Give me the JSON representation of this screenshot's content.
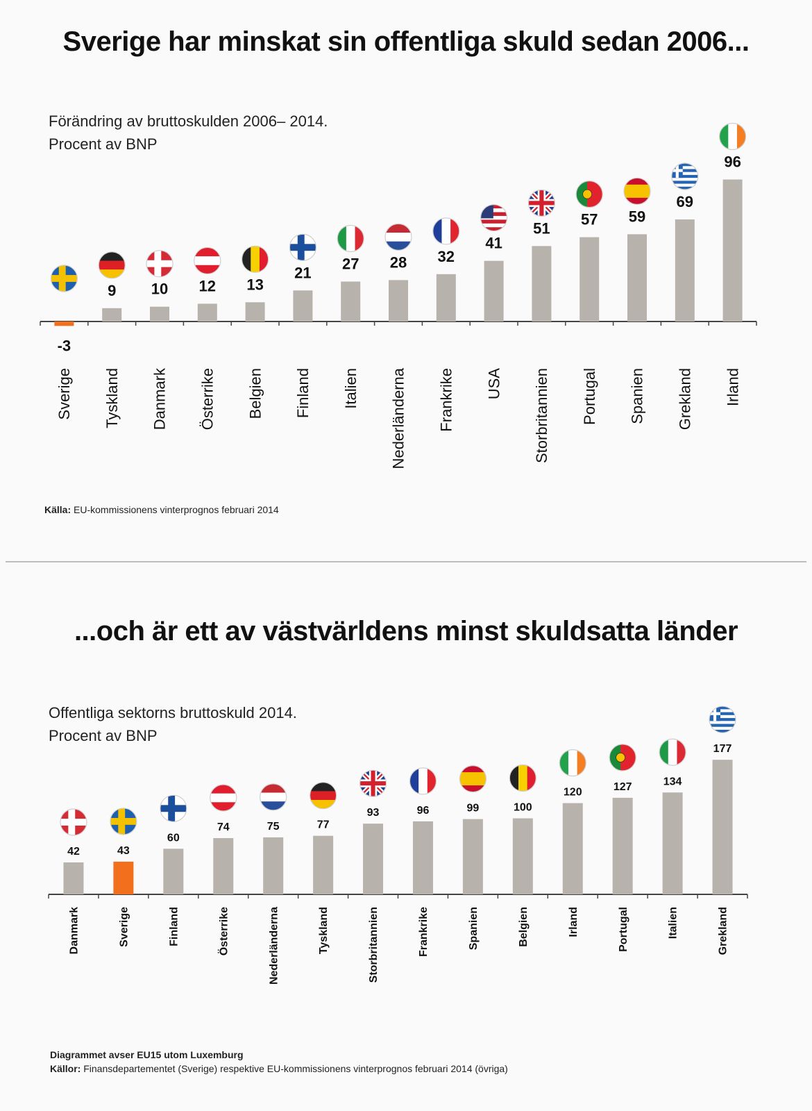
{
  "charts": [
    {
      "title": "Sverige har minskat sin offentliga skuld sedan 2006...",
      "subtitle": [
        "Förändring av bruttoskulden 2006– 2014.",
        "Procent av BNP"
      ],
      "source_label": "Källa:",
      "source_text": "EU-kommissionens vinterprognos februari 2014"
    },
    {
      "title": "...och är ett av västvärldens minst skuldsatta länder",
      "subtitle": [
        "Offentliga sektorns bruttoskuld 2014.",
        "Procent av BNP"
      ],
      "note": "Diagrammet avser EU15 utom Luxemburg",
      "source_label": "Källor:",
      "source_text": "Finansdepartementet (Sverige) respektive EU-kommissionens vinterprognos februari 2014 (övriga)"
    }
  ],
  "colors": {
    "bar": "#b8b2ad",
    "highlight": "#f26f1e",
    "axis": "#444444"
  },
  "chart_data": [
    {
      "type": "bar",
      "title": "Sverige har minskat sin offentliga skuld sedan 2006...",
      "subtitle": "Förändring av bruttoskulden 2006– 2014. Procent av BNP",
      "categories": [
        "Sverige",
        "Tyskland",
        "Danmark",
        "Österrike",
        "Belgien",
        "Finland",
        "Italien",
        "Nederländerna",
        "Frankrike",
        "USA",
        "Storbritannien",
        "Portugal",
        "Spanien",
        "Grekland",
        "Irland"
      ],
      "values": [
        -3,
        9,
        10,
        12,
        13,
        21,
        27,
        28,
        32,
        41,
        51,
        57,
        59,
        69,
        96
      ],
      "flags": [
        "se",
        "de",
        "dk",
        "at",
        "be",
        "fi",
        "it",
        "nl",
        "fr",
        "us",
        "gb",
        "pt",
        "es",
        "gr",
        "ie"
      ],
      "highlight": "Sverige",
      "grid": false
    },
    {
      "type": "bar",
      "title": "...och är ett av västvärldens minst skuldsatta länder",
      "subtitle": "Offentliga sektorns bruttoskuld 2014. Procent av BNP",
      "categories": [
        "Danmark",
        "Sverige",
        "Finland",
        "Österrike",
        "Nederländerna",
        "Tyskland",
        "Storbritannien",
        "Frankrike",
        "Spanien",
        "Belgien",
        "Irland",
        "Portugal",
        "Italien",
        "Grekland"
      ],
      "values": [
        42,
        43,
        60,
        74,
        75,
        77,
        93,
        96,
        99,
        100,
        120,
        127,
        134,
        177
      ],
      "flags": [
        "dk",
        "se",
        "fi",
        "at",
        "nl",
        "de",
        "gb",
        "fr",
        "es",
        "be",
        "ie",
        "pt",
        "it",
        "gr"
      ],
      "highlight": "Sverige",
      "grid": false
    }
  ]
}
